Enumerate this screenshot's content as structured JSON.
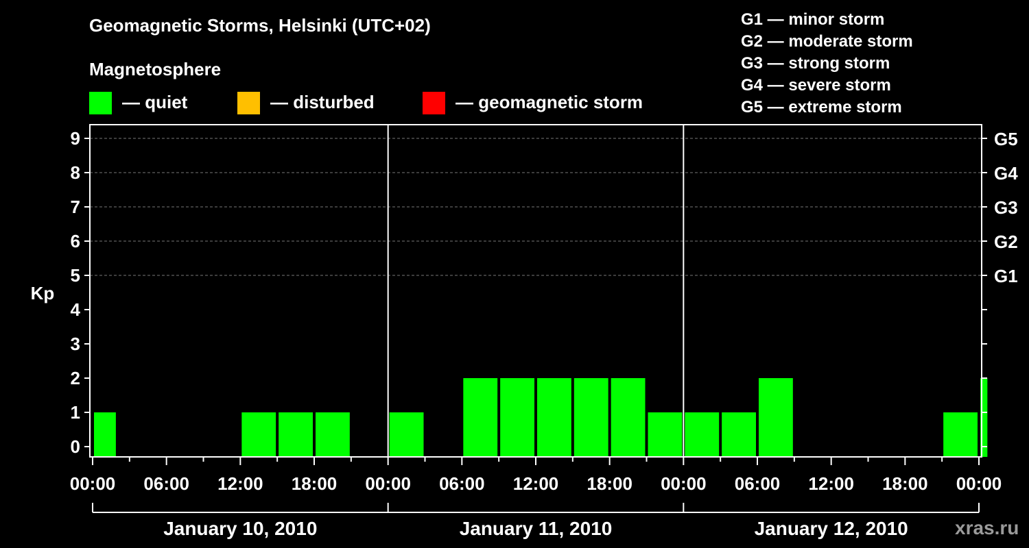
{
  "title": "Geomagnetic Storms, Helsinki (UTC+02)",
  "magnetosphere": {
    "heading": "Magnetosphere",
    "items": [
      {
        "label": "— quiet",
        "color": "#00ff00"
      },
      {
        "label": "— disturbed",
        "color": "#ffbf00"
      },
      {
        "label": "— geomagnetic storm",
        "color": "#ff0000"
      }
    ]
  },
  "storm_scale": [
    "G1 — minor storm",
    "G2 — moderate storm",
    "G3 — strong storm",
    "G4 — severe storm",
    "G5 — extreme storm"
  ],
  "watermark": "xras.ru",
  "chart_data": {
    "type": "bar",
    "ylabel": "Kp",
    "ylim": [
      0,
      9
    ],
    "y_ticks": [
      "0",
      "1",
      "2",
      "3",
      "4",
      "5",
      "6",
      "7",
      "8",
      "9"
    ],
    "g_ticks": [
      {
        "kp": 5,
        "label": "G1"
      },
      {
        "kp": 6,
        "label": "G2"
      },
      {
        "kp": 7,
        "label": "G3"
      },
      {
        "kp": 8,
        "label": "G4"
      },
      {
        "kp": 9,
        "label": "G5"
      }
    ],
    "x_tick_labels": [
      "00:00",
      "06:00",
      "12:00",
      "18:00",
      "00:00",
      "06:00",
      "12:00",
      "18:00",
      "00:00",
      "06:00",
      "12:00",
      "18:00",
      "00:00"
    ],
    "days": [
      "January 10, 2010",
      "January 11, 2010",
      "January 12, 2010"
    ],
    "bar_color": "#00ff00",
    "bars": [
      {
        "start_hour": 0,
        "end_hour": 2,
        "kp": 1
      },
      {
        "start_hour": 12,
        "end_hour": 15,
        "kp": 1
      },
      {
        "start_hour": 15,
        "end_hour": 18,
        "kp": 1
      },
      {
        "start_hour": 18,
        "end_hour": 21,
        "kp": 1
      },
      {
        "start_hour": 24,
        "end_hour": 27,
        "kp": 1
      },
      {
        "start_hour": 30,
        "end_hour": 33,
        "kp": 2
      },
      {
        "start_hour": 33,
        "end_hour": 36,
        "kp": 2
      },
      {
        "start_hour": 36,
        "end_hour": 39,
        "kp": 2
      },
      {
        "start_hour": 39,
        "end_hour": 42,
        "kp": 2
      },
      {
        "start_hour": 42,
        "end_hour": 45,
        "kp": 2
      },
      {
        "start_hour": 45,
        "end_hour": 48,
        "kp": 1
      },
      {
        "start_hour": 48,
        "end_hour": 51,
        "kp": 1
      },
      {
        "start_hour": 51,
        "end_hour": 54,
        "kp": 1
      },
      {
        "start_hour": 54,
        "end_hour": 57,
        "kp": 2
      },
      {
        "start_hour": 69,
        "end_hour": 72,
        "kp": 1
      },
      {
        "start_hour": 72,
        "end_hour": 72.8,
        "kp": 2
      }
    ]
  }
}
